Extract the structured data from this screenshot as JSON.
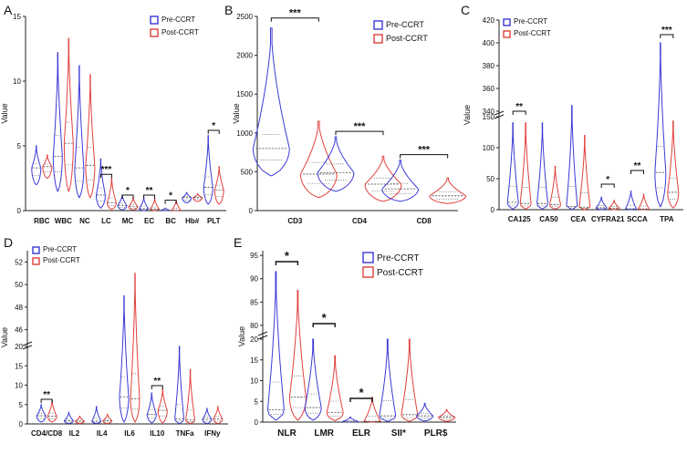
{
  "colors": {
    "pre": "#3a3ad6",
    "post": "#e0403c",
    "axis": "#222222"
  },
  "chart_data": [
    {
      "id": "A",
      "panel_label": "A",
      "type": "violin",
      "ylabel": "Value",
      "ylim": [
        0,
        15
      ],
      "yticks": [
        0,
        5,
        10,
        15
      ],
      "legend": [
        "Pre-CCRT",
        "Post-CCRT"
      ],
      "categories": [
        "RBC",
        "WBC",
        "NC",
        "LC",
        "MC",
        "EC",
        "BC",
        "Hb#",
        "PLT"
      ],
      "series": [
        {
          "name": "Pre-CCRT",
          "medians": [
            3.3,
            4.2,
            3.3,
            1.2,
            0.4,
            0.15,
            0.02,
            1.0,
            1.8
          ],
          "mins": [
            2.0,
            1.5,
            1.0,
            0.2,
            0.05,
            0.0,
            0.0,
            0.6,
            0.5
          ],
          "maxs": [
            5.0,
            12.2,
            11.2,
            4.0,
            1.2,
            1.0,
            0.2,
            1.4,
            5.8
          ]
        },
        {
          "name": "Post-CCRT",
          "medians": [
            3.4,
            5.2,
            3.5,
            0.6,
            0.3,
            0.12,
            0.02,
            1.0,
            1.6
          ],
          "mins": [
            2.5,
            1.5,
            1.0,
            0.1,
            0.05,
            0.0,
            0.0,
            0.7,
            0.5
          ],
          "maxs": [
            4.3,
            13.3,
            10.5,
            2.5,
            1.0,
            0.9,
            0.8,
            1.3,
            3.4
          ]
        }
      ],
      "significance": [
        {
          "category": "LC",
          "label": "***",
          "y": 2.8
        },
        {
          "category": "MC",
          "label": "*",
          "y": 1.2
        },
        {
          "category": "EC",
          "label": "**",
          "y": 1.2
        },
        {
          "category": "BC",
          "label": "*",
          "y": 0.8
        },
        {
          "category": "PLT",
          "label": "*",
          "y": 6.2
        }
      ]
    },
    {
      "id": "B",
      "panel_label": "B",
      "type": "violin",
      "ylabel": "Value",
      "ylim": [
        0,
        2500
      ],
      "yticks": [
        0,
        500,
        1000,
        1500,
        2000,
        2500
      ],
      "legend": [
        "Pre-CCRT",
        "Post-CCRT"
      ],
      "categories": [
        "CD3",
        "CD4",
        "CD8"
      ],
      "series": [
        {
          "name": "Pre-CCRT",
          "medians": [
            800,
            490,
            280
          ],
          "q1": [
            650,
            390,
            220
          ],
          "q3": [
            980,
            600,
            350
          ],
          "mins": [
            450,
            250,
            120
          ],
          "maxs": [
            2350,
            950,
            650
          ]
        },
        {
          "name": "Post-CCRT",
          "medians": [
            470,
            340,
            190
          ],
          "q1": [
            350,
            250,
            150
          ],
          "q3": [
            620,
            420,
            240
          ],
          "mins": [
            170,
            120,
            90
          ],
          "maxs": [
            1150,
            700,
            420
          ]
        }
      ],
      "significance": [
        {
          "category": "CD3",
          "label": "***",
          "y": 2480
        },
        {
          "category": "CD4",
          "label": "***",
          "y": 1020
        },
        {
          "category": "CD8",
          "label": "***",
          "y": 720
        }
      ]
    },
    {
      "id": "C",
      "panel_label": "C",
      "type": "violin",
      "ylabel": "Value",
      "axis_break": "broken y-axis",
      "lower_ticks": [
        0,
        50,
        100,
        150
      ],
      "upper_ticks": [
        340,
        360,
        380,
        400,
        420
      ],
      "legend": [
        "Pre-CCRT",
        "Post-CCRT"
      ],
      "categories": [
        "CA125",
        "CA50",
        "CEA",
        "CYFRA21",
        "SCCA",
        "TPA"
      ],
      "series": [
        {
          "name": "Pre-CCRT",
          "medians": [
            12,
            10,
            5,
            3,
            1.5,
            60
          ],
          "mins": [
            1,
            1,
            0,
            0,
            0,
            5
          ],
          "maxs": [
            140,
            140,
            345,
            20,
            30,
            400
          ]
        },
        {
          "name": "Post-CCRT",
          "medians": [
            10,
            8,
            4,
            2.5,
            1.2,
            28
          ],
          "mins": [
            1,
            1,
            0,
            0,
            0,
            3
          ],
          "maxs": [
            140,
            70,
            120,
            15,
            25,
            143
          ]
        }
      ],
      "significance": [
        {
          "category": "CA125",
          "label": "**"
        },
        {
          "category": "CYFRA21",
          "label": "*"
        },
        {
          "category": "SCCA",
          "label": "**"
        },
        {
          "category": "TPA",
          "label": "***"
        }
      ]
    },
    {
      "id": "D",
      "panel_label": "D",
      "type": "violin",
      "ylabel": "Value",
      "axis_break": "broken y-axis",
      "lower_ticks": [
        0,
        5,
        10,
        15,
        20
      ],
      "upper_ticks": [
        46,
        48,
        50,
        52
      ],
      "legend": [
        "Pre-CCRT",
        "Post-CCRT"
      ],
      "categories": [
        "CD4/CD8",
        "IL2",
        "IL4",
        "IL6",
        "IL10",
        "TNFa",
        "IFNy"
      ],
      "series": [
        {
          "name": "Pre-CCRT",
          "medians": [
            2.1,
            0.8,
            0.7,
            7.0,
            2.5,
            1.3,
            1.2
          ],
          "mins": [
            0.5,
            0.1,
            0.1,
            0.5,
            0.3,
            0.1,
            0.1
          ],
          "maxs": [
            5.0,
            3.0,
            4.5,
            49,
            8.0,
            20.5,
            4.0
          ]
        },
        {
          "name": "Post-CCRT",
          "medians": [
            2.0,
            0.7,
            0.8,
            6.5,
            3.5,
            1.0,
            1.3
          ],
          "mins": [
            0.5,
            0.1,
            0.1,
            0.5,
            0.3,
            0.1,
            0.1
          ],
          "maxs": [
            6.0,
            2.0,
            2.5,
            51,
            9.0,
            14.0,
            4.5
          ]
        }
      ],
      "significance": [
        {
          "category": "CD4/CD8",
          "label": "**"
        },
        {
          "category": "IL10",
          "label": "**"
        }
      ]
    },
    {
      "id": "E",
      "panel_label": "E",
      "type": "violin",
      "ylabel": "Value",
      "axis_break": "broken y-axis",
      "lower_ticks": [
        0,
        5,
        10,
        15,
        20
      ],
      "upper_ticks": [
        80,
        85,
        90,
        95
      ],
      "legend": [
        "Pre-CCRT",
        "Post-CCRT"
      ],
      "categories": [
        "NLR",
        "LMR",
        "ELR",
        "SII*",
        "PLR$"
      ],
      "series": [
        {
          "name": "Pre-CCRT",
          "medians": [
            3.0,
            3.5,
            0.1,
            1.5,
            1.5
          ],
          "mins": [
            0.5,
            0.5,
            0.0,
            0.2,
            0.3
          ],
          "maxs": [
            91.5,
            20.5,
            1.2,
            20.5,
            4.5
          ]
        },
        {
          "name": "Post-CCRT",
          "medians": [
            6.0,
            2.3,
            0.2,
            1.8,
            1.2
          ],
          "mins": [
            0.5,
            0.4,
            0.0,
            0.2,
            0.2
          ],
          "maxs": [
            87.5,
            16.0,
            6.0,
            20.5,
            3.0
          ]
        }
      ],
      "significance": [
        {
          "category": "NLR",
          "label": "*"
        },
        {
          "category": "LMR",
          "label": "*"
        },
        {
          "category": "ELR",
          "label": "*"
        }
      ]
    }
  ]
}
